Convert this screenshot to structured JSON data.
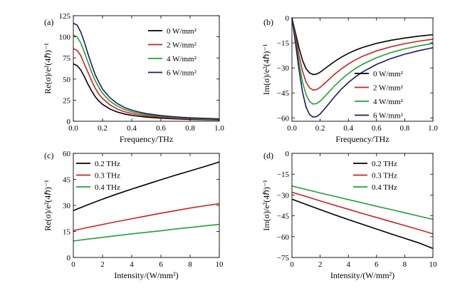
{
  "chart_data": [
    {
      "panel": "(a)",
      "type": "line",
      "xlabel": "Frequency/THz",
      "ylabel": "Re(σ)/e²(4ℏ)⁻¹",
      "xlim": [
        0,
        1.0
      ],
      "ylim": [
        0,
        125
      ],
      "xticks": [
        0.0,
        0.2,
        0.4,
        0.6,
        0.8,
        1.0
      ],
      "xtick_labels": [
        "0.0",
        "0.2",
        "0.4",
        "0.6",
        "0.8",
        "1.0"
      ],
      "yticks": [
        0,
        25,
        50,
        75,
        100,
        125
      ],
      "ytick_labels": [
        "0",
        "25",
        "50",
        "75",
        "100",
        "125"
      ],
      "legend_position": "top-right",
      "series": [
        {
          "name": "0 W/mm²",
          "color": "#000000",
          "x": [
            0,
            0.025,
            0.05,
            0.075,
            0.1,
            0.125,
            0.15,
            0.175,
            0.2,
            0.25,
            0.3,
            0.35,
            0.4,
            0.45,
            0.5,
            0.6,
            0.7,
            0.8,
            0.9,
            1.0
          ],
          "y": [
            68,
            66,
            61,
            53,
            44,
            36,
            29,
            24,
            20,
            14.5,
            11,
            8.6,
            7.0,
            5.8,
            4.9,
            3.6,
            2.8,
            2.2,
            1.8,
            1.5
          ]
        },
        {
          "name": "2 W/mm²",
          "color": "#cc2222",
          "x": [
            0,
            0.025,
            0.05,
            0.075,
            0.1,
            0.125,
            0.15,
            0.175,
            0.2,
            0.25,
            0.3,
            0.35,
            0.4,
            0.45,
            0.5,
            0.6,
            0.7,
            0.8,
            0.9,
            1.0
          ],
          "y": [
            86,
            84,
            78,
            68,
            58,
            48,
            39,
            32,
            27,
            19.5,
            14.5,
            11.3,
            9.2,
            7.6,
            6.4,
            4.7,
            3.6,
            2.9,
            2.4,
            2.0
          ]
        },
        {
          "name": "4 W/mm²",
          "color": "#22a033",
          "x": [
            0,
            0.025,
            0.05,
            0.075,
            0.1,
            0.125,
            0.15,
            0.175,
            0.2,
            0.25,
            0.3,
            0.35,
            0.4,
            0.45,
            0.5,
            0.6,
            0.7,
            0.8,
            0.9,
            1.0
          ],
          "y": [
            102,
            100,
            93,
            82,
            70,
            58,
            48,
            40,
            33,
            24,
            18,
            14,
            11.3,
            9.3,
            7.8,
            5.7,
            4.4,
            3.5,
            2.9,
            2.4
          ]
        },
        {
          "name": "6 W/mm²",
          "color": "#1a1a66",
          "x": [
            0,
            0.025,
            0.05,
            0.075,
            0.1,
            0.125,
            0.15,
            0.175,
            0.2,
            0.25,
            0.3,
            0.35,
            0.4,
            0.45,
            0.5,
            0.6,
            0.7,
            0.8,
            0.9,
            1.0
          ],
          "y": [
            116,
            114,
            106,
            94,
            80,
            67,
            55,
            46,
            38,
            28,
            21,
            16.3,
            13.2,
            10.9,
            9.1,
            6.7,
            5.1,
            4.1,
            3.4,
            2.8
          ]
        }
      ]
    },
    {
      "panel": "(b)",
      "type": "line",
      "xlabel": "Frequency/THz",
      "ylabel": "Im(σ)/e²(4ℏ)⁻¹",
      "xlim": [
        0,
        1.0
      ],
      "ylim": [
        -62,
        0
      ],
      "xticks": [
        0.0,
        0.2,
        0.4,
        0.6,
        0.8,
        1.0
      ],
      "xtick_labels": [
        "0.0",
        "0.2",
        "0.4",
        "0.6",
        "0.8",
        "1.0"
      ],
      "yticks": [
        0,
        -15,
        -30,
        -45,
        -60
      ],
      "ytick_labels": [
        "0",
        "−15",
        "−30",
        "−45",
        "−60"
      ],
      "legend_position": "bottom-right",
      "series": [
        {
          "name": "0 W/mm²",
          "color": "#000000",
          "x": [
            0,
            0.025,
            0.05,
            0.075,
            0.1,
            0.125,
            0.15,
            0.175,
            0.2,
            0.25,
            0.3,
            0.35,
            0.4,
            0.45,
            0.5,
            0.6,
            0.7,
            0.8,
            0.9,
            1.0
          ],
          "y": [
            0,
            -9,
            -18,
            -25.5,
            -30.5,
            -33,
            -34,
            -33.7,
            -32.6,
            -29.4,
            -26.3,
            -23.6,
            -21.3,
            -19.4,
            -17.8,
            -15.3,
            -13.5,
            -12.1,
            -11.0,
            -10.1
          ]
        },
        {
          "name": "2 W/mm²",
          "color": "#cc2222",
          "x": [
            0,
            0.025,
            0.05,
            0.075,
            0.1,
            0.125,
            0.15,
            0.175,
            0.2,
            0.25,
            0.3,
            0.35,
            0.4,
            0.45,
            0.5,
            0.6,
            0.7,
            0.8,
            0.9,
            1.0
          ],
          "y": [
            0,
            -11,
            -22.5,
            -32,
            -38.5,
            -42,
            -43.3,
            -43,
            -41.7,
            -37.9,
            -34,
            -30.6,
            -27.7,
            -25.2,
            -23.1,
            -19.8,
            -17.4,
            -15.5,
            -14.0,
            -12.8
          ]
        },
        {
          "name": "4 W/mm²",
          "color": "#22a033",
          "x": [
            0,
            0.025,
            0.05,
            0.075,
            0.1,
            0.125,
            0.15,
            0.175,
            0.2,
            0.25,
            0.3,
            0.35,
            0.4,
            0.45,
            0.5,
            0.6,
            0.7,
            0.8,
            0.9,
            1.0
          ],
          "y": [
            0,
            -13,
            -27,
            -38.5,
            -46,
            -50.2,
            -51.7,
            -51.4,
            -50,
            -45.6,
            -41,
            -36.9,
            -33.4,
            -30.4,
            -27.9,
            -23.9,
            -20.9,
            -18.6,
            -16.8,
            -15.3
          ]
        },
        {
          "name": "6 W/mm²",
          "color": "#1a1a66",
          "x": [
            0,
            0.025,
            0.05,
            0.075,
            0.1,
            0.125,
            0.15,
            0.175,
            0.2,
            0.25,
            0.3,
            0.35,
            0.4,
            0.45,
            0.5,
            0.6,
            0.7,
            0.8,
            0.9,
            1.0
          ],
          "y": [
            0,
            -15,
            -31,
            -44.5,
            -53.5,
            -58,
            -59.5,
            -59.2,
            -57.7,
            -52.7,
            -47.5,
            -42.8,
            -38.8,
            -35.4,
            -32.5,
            -27.9,
            -24.5,
            -21.8,
            -19.7,
            -17.9
          ]
        }
      ]
    },
    {
      "panel": "(c)",
      "type": "line",
      "xlabel": "Intensity/(W/mm²)",
      "ylabel": "Re(σ)/e²(4ℏ)⁻¹",
      "xlim": [
        0,
        10
      ],
      "ylim": [
        0,
        60
      ],
      "xticks": [
        0,
        2,
        4,
        6,
        8,
        10
      ],
      "xtick_labels": [
        "0",
        "2",
        "4",
        "6",
        "8",
        "10"
      ],
      "yticks": [
        0,
        15,
        30,
        45,
        60
      ],
      "ytick_labels": [
        "0",
        "15",
        "30",
        "45",
        "60"
      ],
      "legend_position": "top-left",
      "series": [
        {
          "name": "0.2 THz",
          "color": "#000000",
          "x": [
            0,
            1,
            2,
            3,
            4,
            5,
            6,
            7,
            8,
            9,
            10
          ],
          "y": [
            27,
            30.4,
            33.6,
            36.6,
            39.4,
            42.1,
            44.8,
            47.4,
            49.9,
            52.4,
            55
          ]
        },
        {
          "name": "0.3 THz",
          "color": "#cc2222",
          "x": [
            0,
            1,
            2,
            3,
            4,
            5,
            6,
            7,
            8,
            9,
            10
          ],
          "y": [
            15.5,
            17.3,
            19.0,
            20.7,
            22.3,
            23.9,
            25.5,
            27.0,
            28.5,
            29.8,
            31
          ]
        },
        {
          "name": "0.4 THz",
          "color": "#22a033",
          "x": [
            0,
            1,
            2,
            3,
            4,
            5,
            6,
            7,
            8,
            9,
            10
          ],
          "y": [
            9.5,
            10.6,
            11.6,
            12.6,
            13.6,
            14.5,
            15.4,
            16.4,
            17.3,
            18.2,
            19.1
          ]
        }
      ]
    },
    {
      "panel": "(d)",
      "type": "line",
      "xlabel": "Intensity/(W/mm²)",
      "ylabel": "Im(σ)/e²(4ℏ)⁻¹",
      "xlim": [
        0,
        10
      ],
      "ylim": [
        -75,
        0
      ],
      "xticks": [
        0,
        2,
        4,
        6,
        8,
        10
      ],
      "xtick_labels": [
        "0",
        "2",
        "4",
        "6",
        "8",
        "10"
      ],
      "yticks": [
        0,
        -15,
        -30,
        -45,
        -60,
        -75
      ],
      "ytick_labels": [
        "0",
        "−15",
        "−30",
        "−45",
        "−60",
        "−75"
      ],
      "legend_position": "top-right",
      "series": [
        {
          "name": "0.2 THz",
          "color": "#000000",
          "x": [
            0,
            1,
            2,
            3,
            4,
            5,
            6,
            7,
            8,
            9,
            10
          ],
          "y": [
            -33,
            -36.8,
            -40.5,
            -44.2,
            -47.7,
            -51.1,
            -54.5,
            -57.9,
            -61.2,
            -64.5,
            -68.5
          ]
        },
        {
          "name": "0.3 THz",
          "color": "#cc2222",
          "x": [
            0,
            1,
            2,
            3,
            4,
            5,
            6,
            7,
            8,
            9,
            10
          ],
          "y": [
            -28,
            -31.1,
            -34.2,
            -37.3,
            -40.3,
            -43.3,
            -46.2,
            -49.1,
            -52.0,
            -54.9,
            -58
          ]
        },
        {
          "name": "0.4 THz",
          "color": "#22a033",
          "x": [
            0,
            1,
            2,
            3,
            4,
            5,
            6,
            7,
            8,
            9,
            10
          ],
          "y": [
            -23.5,
            -26.0,
            -28.5,
            -30.9,
            -33.3,
            -35.7,
            -38.1,
            -40.4,
            -42.8,
            -45.2,
            -47.5
          ]
        }
      ]
    }
  ]
}
